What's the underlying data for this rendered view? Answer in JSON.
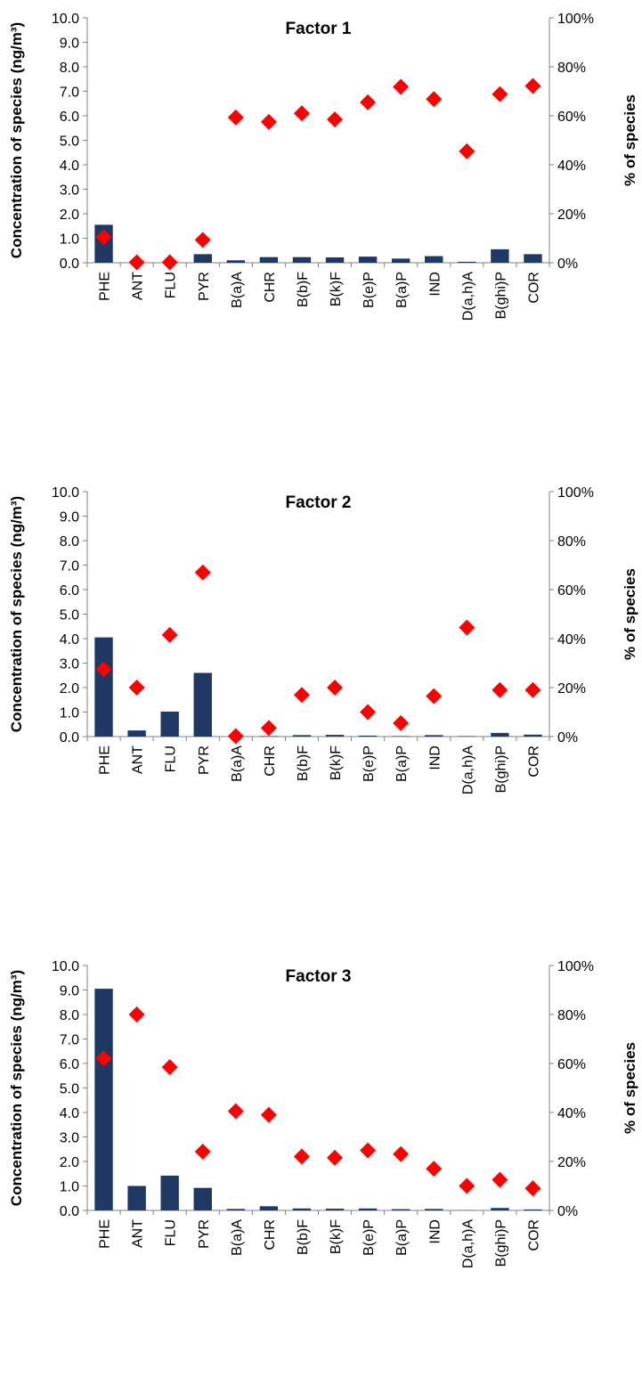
{
  "colors": {
    "bar": "#1f3864",
    "marker": "#ff0000",
    "axis": "#808080"
  },
  "chart_data": [
    {
      "type": "bar",
      "title": "Factor 1",
      "categories": [
        "PHE",
        "ANT",
        "FLU",
        "PYR",
        "B(a)A",
        "CHR",
        "B(b)F",
        "B(k)F",
        "B(e)P",
        "B(a)P",
        "IND",
        "D(a,h)A",
        "B(ghi)P",
        "COR"
      ],
      "ylabel": "Concentration of species (ng/m³)",
      "y2label": "% of species",
      "ylim": [
        0,
        10
      ],
      "y2lim": [
        0,
        100
      ],
      "yticks": [
        "0.0",
        "1.0",
        "2.0",
        "3.0",
        "4.0",
        "5.0",
        "6.0",
        "7.0",
        "8.0",
        "9.0",
        "10.0"
      ],
      "y2ticks": [
        "0%",
        "20%",
        "40%",
        "60%",
        "80%",
        "100%"
      ],
      "series": [
        {
          "type": "bar",
          "axis": "left",
          "values": [
            1.55,
            0.0,
            0.0,
            0.35,
            0.1,
            0.23,
            0.23,
            0.22,
            0.25,
            0.17,
            0.27,
            0.04,
            0.55,
            0.35
          ]
        },
        {
          "type": "scatter",
          "axis": "right",
          "values": [
            10.5,
            0.2,
            0.2,
            9.3,
            59.3,
            57.5,
            61.0,
            58.5,
            65.5,
            71.8,
            66.8,
            45.5,
            68.8,
            72.2
          ]
        }
      ]
    },
    {
      "type": "bar",
      "title": "Factor 2",
      "categories": [
        "PHE",
        "ANT",
        "FLU",
        "PYR",
        "B(a)A",
        "CHR",
        "B(b)F",
        "B(k)F",
        "B(e)P",
        "B(a)P",
        "IND",
        "D(a,h)A",
        "B(ghi)P",
        "COR"
      ],
      "ylabel": "Concentration of species (ng/m³)",
      "y2label": "% of species",
      "ylim": [
        0,
        10
      ],
      "y2lim": [
        0,
        100
      ],
      "yticks": [
        "0.0",
        "1.0",
        "2.0",
        "3.0",
        "4.0",
        "5.0",
        "6.0",
        "7.0",
        "8.0",
        "9.0",
        "10.0"
      ],
      "y2ticks": [
        "0%",
        "20%",
        "40%",
        "60%",
        "80%",
        "100%"
      ],
      "series": [
        {
          "type": "bar",
          "axis": "left",
          "values": [
            4.05,
            0.25,
            1.02,
            2.6,
            0.0,
            0.02,
            0.06,
            0.07,
            0.04,
            0.02,
            0.06,
            0.02,
            0.15,
            0.08
          ]
        },
        {
          "type": "scatter",
          "axis": "right",
          "values": [
            27.5,
            20.0,
            41.5,
            67.0,
            0.2,
            3.5,
            17.0,
            20.0,
            10.0,
            5.5,
            16.5,
            44.5,
            19.0,
            19.0
          ]
        }
      ]
    },
    {
      "type": "bar",
      "title": "Factor 3",
      "categories": [
        "PHE",
        "ANT",
        "FLU",
        "PYR",
        "B(a)A",
        "CHR",
        "B(b)F",
        "B(k)F",
        "B(e)P",
        "B(a)P",
        "IND",
        "D(a,h)A",
        "B(ghi)P",
        "COR"
      ],
      "ylabel": "Concentration of species (ng/m³)",
      "y2label": "% of species",
      "ylim": [
        0,
        10
      ],
      "y2lim": [
        0,
        100
      ],
      "yticks": [
        "0.0",
        "1.0",
        "2.0",
        "3.0",
        "4.0",
        "5.0",
        "6.0",
        "7.0",
        "8.0",
        "9.0",
        "10.0"
      ],
      "y2ticks": [
        "0%",
        "20%",
        "40%",
        "60%",
        "80%",
        "100%"
      ],
      "series": [
        {
          "type": "bar",
          "axis": "left",
          "values": [
            9.05,
            1.0,
            1.42,
            0.92,
            0.06,
            0.17,
            0.08,
            0.07,
            0.08,
            0.05,
            0.06,
            0.01,
            0.1,
            0.04
          ]
        },
        {
          "type": "scatter",
          "axis": "right",
          "values": [
            62.0,
            80.0,
            58.5,
            24.0,
            40.5,
            39.0,
            22.0,
            21.5,
            24.5,
            23.0,
            17.0,
            10.0,
            12.5,
            9.0
          ]
        }
      ]
    }
  ]
}
